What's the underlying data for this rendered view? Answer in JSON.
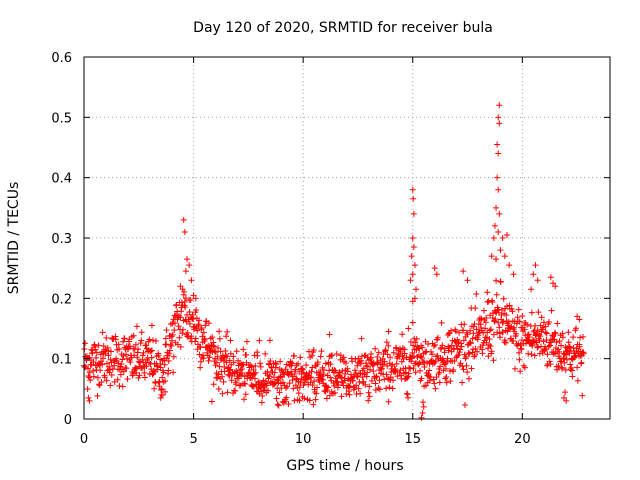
{
  "chart_data": {
    "type": "scatter",
    "title": "Day 120 of 2020, SRMTID for receiver bula",
    "xlabel": "GPS time / hours",
    "ylabel": "SRMTID / TECUs",
    "xlim": [
      0,
      24
    ],
    "ylim": [
      0,
      0.6
    ],
    "xticks": [
      0,
      5,
      10,
      15,
      20
    ],
    "yticks": [
      0,
      0.1,
      0.2,
      0.3,
      0.4,
      0.5,
      0.6
    ],
    "xtick_labels": [
      "0",
      "5",
      "10",
      "15",
      "20"
    ],
    "ytick_labels": [
      "0",
      "0.1",
      "0.2",
      "0.3",
      "0.4",
      "0.5",
      "0.6"
    ],
    "grid": true,
    "marker": "plus",
    "color": "#ff0000",
    "series": [
      {
        "name": "SRMTID",
        "profile": [
          [
            0.0,
            0.095
          ],
          [
            0.5,
            0.095
          ],
          [
            1.0,
            0.1
          ],
          [
            2.0,
            0.1
          ],
          [
            3.0,
            0.095
          ],
          [
            3.5,
            0.075
          ],
          [
            4.0,
            0.13
          ],
          [
            4.5,
            0.175
          ],
          [
            5.0,
            0.16
          ],
          [
            5.5,
            0.13
          ],
          [
            6.0,
            0.1
          ],
          [
            7.0,
            0.075
          ],
          [
            8.0,
            0.07
          ],
          [
            9.0,
            0.065
          ],
          [
            10.0,
            0.065
          ],
          [
            11.0,
            0.07
          ],
          [
            12.0,
            0.07
          ],
          [
            13.0,
            0.075
          ],
          [
            14.0,
            0.085
          ],
          [
            14.8,
            0.09
          ],
          [
            15.2,
            0.12
          ],
          [
            15.5,
            0.085
          ],
          [
            16.0,
            0.1
          ],
          [
            17.0,
            0.115
          ],
          [
            18.0,
            0.13
          ],
          [
            18.7,
            0.16
          ],
          [
            19.0,
            0.17
          ],
          [
            19.5,
            0.14
          ],
          [
            20.0,
            0.13
          ],
          [
            21.0,
            0.135
          ],
          [
            22.0,
            0.11
          ],
          [
            22.8,
            0.105
          ]
        ],
        "spread": 0.032,
        "samples_per_hour": 60,
        "x_range": [
          0.0,
          22.8
        ],
        "extra_points": [
          [
            4.55,
            0.33
          ],
          [
            4.6,
            0.31
          ],
          [
            4.7,
            0.265
          ],
          [
            4.8,
            0.255
          ],
          [
            4.4,
            0.22
          ],
          [
            4.5,
            0.215
          ],
          [
            4.65,
            0.245
          ],
          [
            4.9,
            0.23
          ],
          [
            5.0,
            0.205
          ],
          [
            5.1,
            0.2
          ],
          [
            15.0,
            0.38
          ],
          [
            15.02,
            0.365
          ],
          [
            15.05,
            0.34
          ],
          [
            15.0,
            0.3
          ],
          [
            15.05,
            0.285
          ],
          [
            14.95,
            0.27
          ],
          [
            15.1,
            0.255
          ],
          [
            15.0,
            0.24
          ],
          [
            15.1,
            0.2
          ],
          [
            15.0,
            0.195
          ],
          [
            14.9,
            0.23
          ],
          [
            15.15,
            0.215
          ],
          [
            18.95,
            0.52
          ],
          [
            18.9,
            0.5
          ],
          [
            18.95,
            0.49
          ],
          [
            18.85,
            0.455
          ],
          [
            18.9,
            0.44
          ],
          [
            18.85,
            0.4
          ],
          [
            18.9,
            0.38
          ],
          [
            18.8,
            0.35
          ],
          [
            18.95,
            0.34
          ],
          [
            18.7,
            0.3
          ],
          [
            18.75,
            0.32
          ],
          [
            18.9,
            0.31
          ],
          [
            19.1,
            0.3
          ],
          [
            19.3,
            0.305
          ],
          [
            18.6,
            0.27
          ],
          [
            18.8,
            0.265
          ],
          [
            19.0,
            0.28
          ],
          [
            19.2,
            0.27
          ],
          [
            19.4,
            0.255
          ],
          [
            19.6,
            0.24
          ],
          [
            16.0,
            0.25
          ],
          [
            16.1,
            0.24
          ],
          [
            17.5,
            0.23
          ],
          [
            17.3,
            0.245
          ],
          [
            18.4,
            0.21
          ],
          [
            20.6,
            0.255
          ],
          [
            20.5,
            0.24
          ],
          [
            20.7,
            0.23
          ],
          [
            20.4,
            0.215
          ],
          [
            21.3,
            0.235
          ],
          [
            21.5,
            0.22
          ],
          [
            21.4,
            0.225
          ],
          [
            22.6,
            0.165
          ],
          [
            22.5,
            0.17
          ],
          [
            3.6,
            0.04
          ],
          [
            3.5,
            0.035
          ],
          [
            3.7,
            0.045
          ],
          [
            0.25,
            0.03
          ],
          [
            0.2,
            0.035
          ],
          [
            15.4,
            0.002
          ],
          [
            15.45,
            0.01
          ],
          [
            15.5,
            0.02
          ],
          [
            22.0,
            0.03
          ],
          [
            21.9,
            0.035
          ],
          [
            8.0,
            0.13
          ],
          [
            11.2,
            0.14
          ],
          [
            13.9,
            0.145
          ],
          [
            14.8,
            0.15
          ],
          [
            3.1,
            0.155
          ]
        ]
      }
    ]
  }
}
